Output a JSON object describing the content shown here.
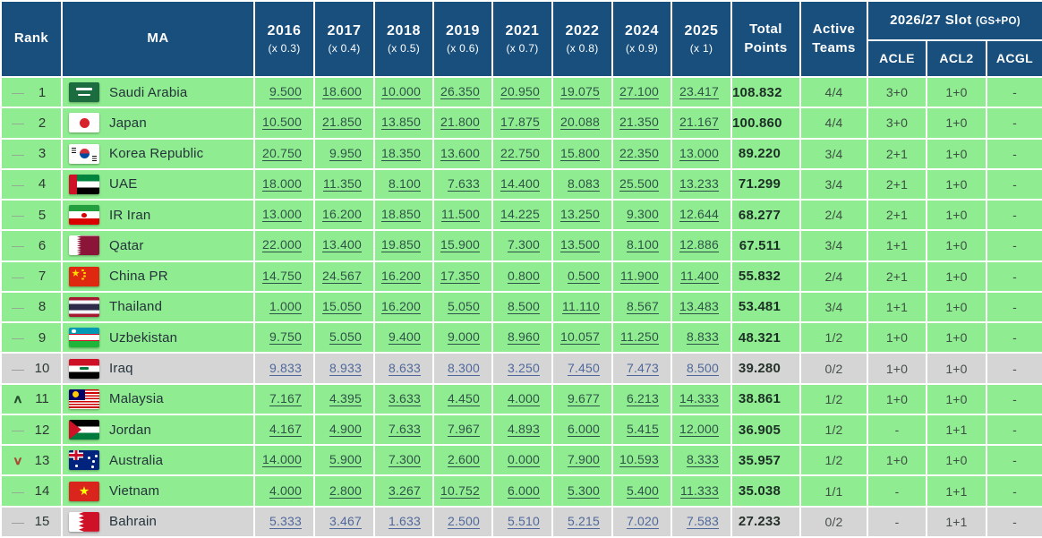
{
  "table": {
    "header": {
      "rank_label": "Rank",
      "ma_label": "MA",
      "years": [
        {
          "year": "2016",
          "mult": "(x 0.3)"
        },
        {
          "year": "2017",
          "mult": "(x 0.4)"
        },
        {
          "year": "2018",
          "mult": "(x 0.5)"
        },
        {
          "year": "2019",
          "mult": "(x 0.6)"
        },
        {
          "year": "2021",
          "mult": "(x 0.7)"
        },
        {
          "year": "2022",
          "mult": "(x 0.8)"
        },
        {
          "year": "2024",
          "mult": "(x 0.9)"
        },
        {
          "year": "2025",
          "mult": "(x 1)"
        }
      ],
      "total_line1": "Total",
      "total_line2": "Points",
      "active_line1": "Active",
      "active_line2": "Teams",
      "slot_group_label": "2026/27 Slot",
      "slot_group_suffix": "(GS+PO)",
      "slot_columns": [
        "ACLE",
        "ACL2",
        "ACGL"
      ]
    },
    "trend_glyphs": {
      "same": "—",
      "up": "∧",
      "down": "∨"
    },
    "rows": [
      {
        "rank": "1",
        "trend": "same",
        "country": "Saudi Arabia",
        "flag": "sa",
        "scores": [
          "9.500",
          "18.600",
          "10.000",
          "26.350",
          "20.950",
          "19.075",
          "27.100",
          "23.417"
        ],
        "total": "108.832",
        "active": "4/4",
        "acle": "3+0",
        "acl2": "1+0",
        "acgl": "-",
        "shade": "green"
      },
      {
        "rank": "2",
        "trend": "same",
        "country": "Japan",
        "flag": "jp",
        "scores": [
          "10.500",
          "21.850",
          "13.850",
          "21.800",
          "17.875",
          "20.088",
          "21.350",
          "21.167"
        ],
        "total": "100.860",
        "active": "4/4",
        "acle": "3+0",
        "acl2": "1+0",
        "acgl": "-",
        "shade": "green"
      },
      {
        "rank": "3",
        "trend": "same",
        "country": "Korea Republic",
        "flag": "kr",
        "scores": [
          "20.750",
          "9.950",
          "18.350",
          "13.600",
          "22.750",
          "15.800",
          "22.350",
          "13.000"
        ],
        "total": "89.220",
        "active": "3/4",
        "acle": "2+1",
        "acl2": "1+0",
        "acgl": "-",
        "shade": "green"
      },
      {
        "rank": "4",
        "trend": "same",
        "country": "UAE",
        "flag": "ae",
        "scores": [
          "18.000",
          "11.350",
          "8.100",
          "7.633",
          "14.400",
          "8.083",
          "25.500",
          "13.233"
        ],
        "total": "71.299",
        "active": "3/4",
        "acle": "2+1",
        "acl2": "1+0",
        "acgl": "-",
        "shade": "green"
      },
      {
        "rank": "5",
        "trend": "same",
        "country": "IR Iran",
        "flag": "ir",
        "scores": [
          "13.000",
          "16.200",
          "18.850",
          "11.500",
          "14.225",
          "13.250",
          "9.300",
          "12.644"
        ],
        "total": "68.277",
        "active": "2/4",
        "acle": "2+1",
        "acl2": "1+0",
        "acgl": "-",
        "shade": "green"
      },
      {
        "rank": "6",
        "trend": "same",
        "country": "Qatar",
        "flag": "qa",
        "scores": [
          "22.000",
          "13.400",
          "19.850",
          "15.900",
          "7.300",
          "13.500",
          "8.100",
          "12.886"
        ],
        "total": "67.511",
        "active": "3/4",
        "acle": "1+1",
        "acl2": "1+0",
        "acgl": "-",
        "shade": "green"
      },
      {
        "rank": "7",
        "trend": "same",
        "country": "China PR",
        "flag": "cn",
        "scores": [
          "14.750",
          "24.567",
          "16.200",
          "17.350",
          "0.800",
          "0.500",
          "11.900",
          "11.400"
        ],
        "total": "55.832",
        "active": "2/4",
        "acle": "2+1",
        "acl2": "1+0",
        "acgl": "-",
        "shade": "green"
      },
      {
        "rank": "8",
        "trend": "same",
        "country": "Thailand",
        "flag": "th",
        "scores": [
          "1.000",
          "15.050",
          "16.200",
          "5.050",
          "8.500",
          "11.110",
          "8.567",
          "13.483"
        ],
        "total": "53.481",
        "active": "3/4",
        "acle": "1+1",
        "acl2": "1+0",
        "acgl": "-",
        "shade": "green"
      },
      {
        "rank": "9",
        "trend": "same",
        "country": "Uzbekistan",
        "flag": "uz",
        "scores": [
          "9.750",
          "5.050",
          "9.400",
          "9.000",
          "8.960",
          "10.057",
          "11.250",
          "8.833"
        ],
        "total": "48.321",
        "active": "1/2",
        "acle": "1+0",
        "acl2": "1+0",
        "acgl": "-",
        "shade": "green"
      },
      {
        "rank": "10",
        "trend": "same",
        "country": "Iraq",
        "flag": "iq",
        "scores": [
          "9.833",
          "8.933",
          "8.633",
          "8.300",
          "3.250",
          "7.450",
          "7.473",
          "8.500"
        ],
        "total": "39.280",
        "active": "0/2",
        "acle": "1+0",
        "acl2": "1+0",
        "acgl": "-",
        "shade": "gray"
      },
      {
        "rank": "11",
        "trend": "up",
        "country": "Malaysia",
        "flag": "my",
        "scores": [
          "7.167",
          "4.395",
          "3.633",
          "4.450",
          "4.000",
          "9.677",
          "6.213",
          "14.333"
        ],
        "total": "38.861",
        "active": "1/2",
        "acle": "1+0",
        "acl2": "1+0",
        "acgl": "-",
        "shade": "green"
      },
      {
        "rank": "12",
        "trend": "same",
        "country": "Jordan",
        "flag": "jo",
        "scores": [
          "4.167",
          "4.900",
          "7.633",
          "7.967",
          "4.893",
          "6.000",
          "5.415",
          "12.000"
        ],
        "total": "36.905",
        "active": "1/2",
        "acle": "-",
        "acl2": "1+1",
        "acgl": "-",
        "shade": "green"
      },
      {
        "rank": "13",
        "trend": "down",
        "country": "Australia",
        "flag": "au",
        "scores": [
          "14.000",
          "5.900",
          "7.300",
          "2.600",
          "0.000",
          "7.900",
          "10.593",
          "8.333"
        ],
        "total": "35.957",
        "active": "1/2",
        "acle": "1+0",
        "acl2": "1+0",
        "acgl": "-",
        "shade": "green"
      },
      {
        "rank": "14",
        "trend": "same",
        "country": "Vietnam",
        "flag": "vn",
        "scores": [
          "4.000",
          "2.800",
          "3.267",
          "10.752",
          "6.000",
          "5.300",
          "5.400",
          "11.333"
        ],
        "total": "35.038",
        "active": "1/1",
        "acle": "-",
        "acl2": "1+1",
        "acgl": "-",
        "shade": "green"
      },
      {
        "rank": "15",
        "trend": "same",
        "country": "Bahrain",
        "flag": "bh",
        "scores": [
          "5.333",
          "3.467",
          "1.633",
          "2.500",
          "5.510",
          "5.215",
          "7.020",
          "7.583"
        ],
        "total": "27.233",
        "active": "0/2",
        "acle": "-",
        "acl2": "1+1",
        "acgl": "-",
        "shade": "gray"
      }
    ],
    "colors": {
      "header_bg": "#184f7d",
      "header_text": "#ffffff",
      "row_green": "#90ec90",
      "row_gray": "#d5d5d5",
      "link_on_green": "#2e5348",
      "link_on_gray": "#50689b",
      "trend_up": "#24512d",
      "trend_down": "#a64a37"
    }
  }
}
